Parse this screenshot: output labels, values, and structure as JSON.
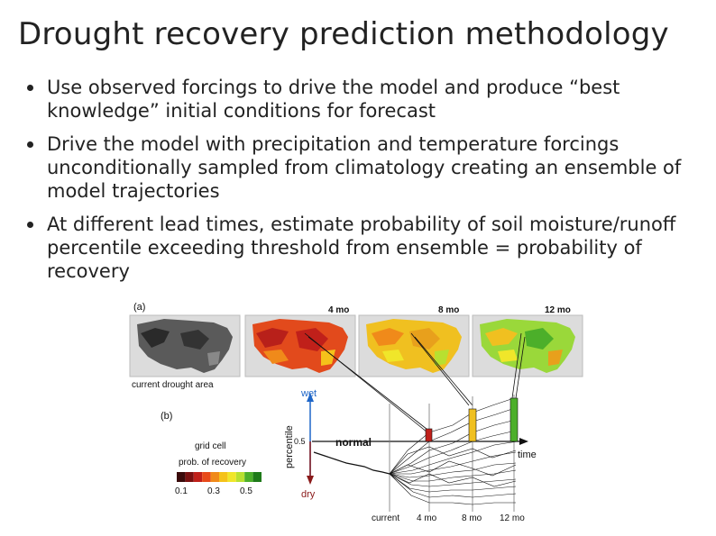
{
  "slide": {
    "title": "Drought recovery prediction methodology",
    "bullets": [
      "Use observed forcings to drive the model and produce “best knowledge” initial conditions for forecast",
      "Drive the model with precipitation and temperature forcings unconditionally sampled from climatology creating an ensemble of model trajectories",
      "At different lead times, estimate probability of soil moisture/runoff percentile exceeding threshold from ensemble = probability of recovery"
    ]
  },
  "figure": {
    "panel_a": "(a)",
    "panel_b": "(b)",
    "map_4": "4 mo",
    "map_8": "8 mo",
    "map_12": "12 mo",
    "current_area": "current drought area",
    "wet": "wet",
    "dry": "dry",
    "percentile": "percentile",
    "tick_05": "0.5",
    "normal": "normal",
    "time": "time",
    "legend_title_1": "grid cell",
    "legend_title_2": "prob. of recovery",
    "legend_ticks": [
      "0.1",
      "0.3",
      "0.5"
    ],
    "legend_colors": [
      "#3a0a0a",
      "#7a1010",
      "#c0201a",
      "#e84a1a",
      "#f08a1a",
      "#f5c21a",
      "#f0e62a",
      "#b8e030",
      "#4caf2a",
      "#1f7a1a"
    ],
    "x_current": "current",
    "x_4": "4 mo",
    "x_8": "8 mo",
    "x_12": "12 mo"
  }
}
